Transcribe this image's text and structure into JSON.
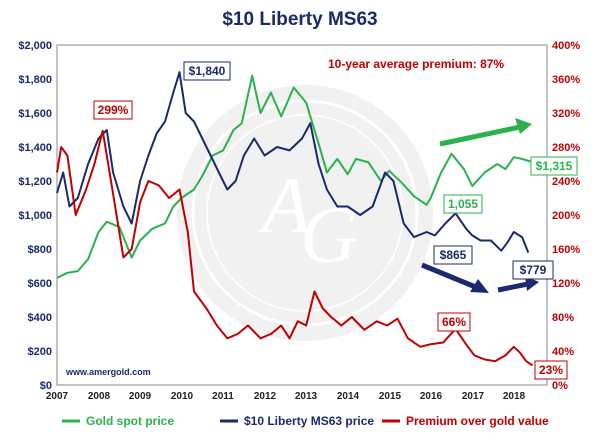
{
  "colors": {
    "gold": "#2bb24c",
    "liberty": "#1a2a6c",
    "premium": "#c00000",
    "plot_border": "#888888"
  },
  "chart_data": {
    "type": "line",
    "title": "$10 Liberty MS63",
    "annotation": "10-year average premium:  87%",
    "credit": "www.amergold.com",
    "x_ticks": [
      "2007",
      "2008",
      "2009",
      "2010",
      "2011",
      "2012",
      "2013",
      "2014",
      "2015",
      "2016",
      "2017",
      "2018"
    ],
    "xlim": [
      2007.0,
      2018.8
    ],
    "y_left": {
      "ylim": [
        0,
        2000
      ],
      "ticks": [
        "$0",
        "$200",
        "$400",
        "$600",
        "$800",
        "$1,000",
        "$1,200",
        "$1,400",
        "$1,600",
        "$1,800",
        "$2,000"
      ]
    },
    "y_right": {
      "ylim": [
        0,
        400
      ],
      "ticks": [
        "0%",
        "40%",
        "80%",
        "120%",
        "160%",
        "200%",
        "240%",
        "280%",
        "320%",
        "360%",
        "400%"
      ]
    },
    "grid": false,
    "legend_position": "bottom",
    "series": [
      {
        "name": "Gold spot price",
        "axis": "left",
        "points": [
          [
            2007.0,
            630
          ],
          [
            2007.25,
            660
          ],
          [
            2007.5,
            670
          ],
          [
            2007.75,
            740
          ],
          [
            2008.0,
            900
          ],
          [
            2008.2,
            960
          ],
          [
            2008.5,
            930
          ],
          [
            2008.8,
            750
          ],
          [
            2009.0,
            850
          ],
          [
            2009.3,
            920
          ],
          [
            2009.6,
            950
          ],
          [
            2009.8,
            1050
          ],
          [
            2010.0,
            1100
          ],
          [
            2010.3,
            1150
          ],
          [
            2010.5,
            1230
          ],
          [
            2010.75,
            1350
          ],
          [
            2011.0,
            1380
          ],
          [
            2011.25,
            1500
          ],
          [
            2011.45,
            1540
          ],
          [
            2011.7,
            1820
          ],
          [
            2011.9,
            1600
          ],
          [
            2012.15,
            1720
          ],
          [
            2012.4,
            1580
          ],
          [
            2012.7,
            1750
          ],
          [
            2013.0,
            1660
          ],
          [
            2013.3,
            1420
          ],
          [
            2013.5,
            1250
          ],
          [
            2013.75,
            1330
          ],
          [
            2014.0,
            1240
          ],
          [
            2014.2,
            1330
          ],
          [
            2014.5,
            1310
          ],
          [
            2014.8,
            1200
          ],
          [
            2015.0,
            1260
          ],
          [
            2015.3,
            1190
          ],
          [
            2015.6,
            1110
          ],
          [
            2015.9,
            1060
          ],
          [
            2016.0,
            1100
          ],
          [
            2016.25,
            1250
          ],
          [
            2016.5,
            1360
          ],
          [
            2016.8,
            1270
          ],
          [
            2017.0,
            1170
          ],
          [
            2017.3,
            1250
          ],
          [
            2017.6,
            1300
          ],
          [
            2017.8,
            1270
          ],
          [
            2018.0,
            1340
          ],
          [
            2018.2,
            1330
          ],
          [
            2018.4,
            1315
          ]
        ]
      },
      {
        "name": "$10 Liberty MS63 price",
        "axis": "left",
        "points": [
          [
            2007.0,
            1130
          ],
          [
            2007.15,
            1250
          ],
          [
            2007.3,
            1050
          ],
          [
            2007.5,
            1100
          ],
          [
            2007.75,
            1300
          ],
          [
            2008.0,
            1450
          ],
          [
            2008.2,
            1500
          ],
          [
            2008.35,
            1250
          ],
          [
            2008.6,
            1050
          ],
          [
            2008.8,
            950
          ],
          [
            2009.0,
            1200
          ],
          [
            2009.2,
            1350
          ],
          [
            2009.4,
            1480
          ],
          [
            2009.6,
            1550
          ],
          [
            2009.8,
            1720
          ],
          [
            2009.95,
            1840
          ],
          [
            2010.1,
            1600
          ],
          [
            2010.3,
            1550
          ],
          [
            2010.5,
            1450
          ],
          [
            2010.7,
            1350
          ],
          [
            2010.9,
            1250
          ],
          [
            2011.1,
            1150
          ],
          [
            2011.3,
            1200
          ],
          [
            2011.5,
            1350
          ],
          [
            2011.75,
            1450
          ],
          [
            2012.0,
            1350
          ],
          [
            2012.3,
            1400
          ],
          [
            2012.6,
            1380
          ],
          [
            2012.9,
            1450
          ],
          [
            2013.1,
            1540
          ],
          [
            2013.3,
            1300
          ],
          [
            2013.5,
            1150
          ],
          [
            2013.75,
            1050
          ],
          [
            2014.0,
            1050
          ],
          [
            2014.3,
            1000
          ],
          [
            2014.6,
            1050
          ],
          [
            2014.9,
            1250
          ],
          [
            2015.1,
            1200
          ],
          [
            2015.35,
            950
          ],
          [
            2015.6,
            870
          ],
          [
            2015.9,
            900
          ],
          [
            2016.1,
            880
          ],
          [
            2016.35,
            950
          ],
          [
            2016.6,
            1010
          ],
          [
            2016.85,
            920
          ],
          [
            2017.0,
            880
          ],
          [
            2017.2,
            850
          ],
          [
            2017.45,
            850
          ],
          [
            2017.7,
            790
          ],
          [
            2017.85,
            840
          ],
          [
            2018.0,
            900
          ],
          [
            2018.2,
            870
          ],
          [
            2018.35,
            779
          ]
        ]
      },
      {
        "name": "Premium over gold value",
        "axis": "right",
        "points": [
          [
            2007.0,
            250
          ],
          [
            2007.1,
            280
          ],
          [
            2007.25,
            270
          ],
          [
            2007.45,
            200
          ],
          [
            2007.7,
            230
          ],
          [
            2007.9,
            260
          ],
          [
            2008.1,
            299
          ],
          [
            2008.3,
            240
          ],
          [
            2008.6,
            150
          ],
          [
            2008.8,
            160
          ],
          [
            2009.0,
            215
          ],
          [
            2009.2,
            240
          ],
          [
            2009.45,
            235
          ],
          [
            2009.7,
            220
          ],
          [
            2009.95,
            230
          ],
          [
            2010.15,
            180
          ],
          [
            2010.3,
            110
          ],
          [
            2010.6,
            90
          ],
          [
            2010.85,
            70
          ],
          [
            2011.1,
            55
          ],
          [
            2011.35,
            60
          ],
          [
            2011.6,
            70
          ],
          [
            2011.9,
            55
          ],
          [
            2012.15,
            60
          ],
          [
            2012.4,
            70
          ],
          [
            2012.6,
            55
          ],
          [
            2012.8,
            75
          ],
          [
            2013.0,
            70
          ],
          [
            2013.2,
            110
          ],
          [
            2013.4,
            90
          ],
          [
            2013.6,
            80
          ],
          [
            2013.85,
            70
          ],
          [
            2014.1,
            80
          ],
          [
            2014.4,
            65
          ],
          [
            2014.7,
            75
          ],
          [
            2014.95,
            70
          ],
          [
            2015.2,
            78
          ],
          [
            2015.45,
            55
          ],
          [
            2015.75,
            45
          ],
          [
            2016.0,
            48
          ],
          [
            2016.3,
            50
          ],
          [
            2016.6,
            66
          ],
          [
            2016.85,
            48
          ],
          [
            2017.05,
            35
          ],
          [
            2017.3,
            30
          ],
          [
            2017.55,
            28
          ],
          [
            2017.8,
            35
          ],
          [
            2018.0,
            45
          ],
          [
            2018.15,
            38
          ],
          [
            2018.3,
            28
          ],
          [
            2018.45,
            23
          ]
        ]
      }
    ],
    "callouts": [
      {
        "text": "$1,840",
        "series": "$10 Liberty MS63 price"
      },
      {
        "text": "299%",
        "series": "Premium over gold value"
      },
      {
        "text": "$1,315",
        "series": "Gold spot price"
      },
      {
        "text": "1,055",
        "series": "Gold spot price"
      },
      {
        "text": "$865",
        "series": "$10 Liberty MS63 price"
      },
      {
        "text": "$779",
        "series": "$10 Liberty MS63 price"
      },
      {
        "text": "66%",
        "series": "Premium over gold value"
      },
      {
        "text": "23%",
        "series": "Premium over gold value"
      }
    ]
  }
}
